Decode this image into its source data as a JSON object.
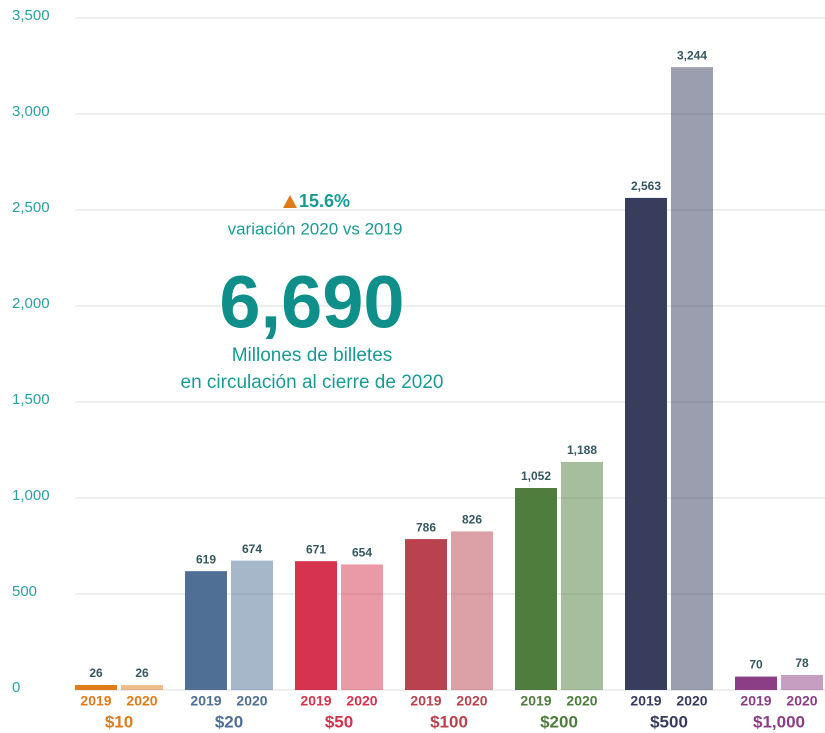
{
  "chart_data": {
    "type": "bar",
    "categories": [
      "$10",
      "$20",
      "$50",
      "$100",
      "$200",
      "$500",
      "$1,000"
    ],
    "category_colors": [
      "#e07b1a",
      "#4f6f95",
      "#d6334f",
      "#b8434f",
      "#4f7d3e",
      "#383d5e",
      "#8b3e86"
    ],
    "series": [
      {
        "name": "2019",
        "values": [
          26,
          619,
          671,
          786,
          1052,
          2563,
          70
        ],
        "value_labels": [
          "26",
          "619",
          "671",
          "786",
          "1,052",
          "2,563",
          "70"
        ]
      },
      {
        "name": "2020",
        "values": [
          26,
          674,
          654,
          826,
          1188,
          3244,
          78
        ],
        "value_labels": [
          "26",
          "674",
          "654",
          "826",
          "1,188",
          "3,244",
          "78"
        ]
      }
    ],
    "ylim": [
      0,
      3500
    ],
    "yticks": [
      0,
      500,
      {
        "value": 1000,
        "label": "1,000"
      },
      {
        "value": 1500,
        "label": "1,500"
      },
      {
        "value": 2000,
        "label": "2,000"
      },
      {
        "value": 2500,
        "label": "2,500"
      },
      {
        "value": 3000,
        "label": "3,000"
      },
      {
        "value": 3500,
        "label": "3,500"
      }
    ],
    "grid": true,
    "annotations": {
      "change": "15.6%",
      "change_label": "variación 2020 vs 2019",
      "total": "6,690",
      "total_label_1": "Millones de billetes",
      "total_label_2": "en circulación al cierre de 2020"
    }
  }
}
